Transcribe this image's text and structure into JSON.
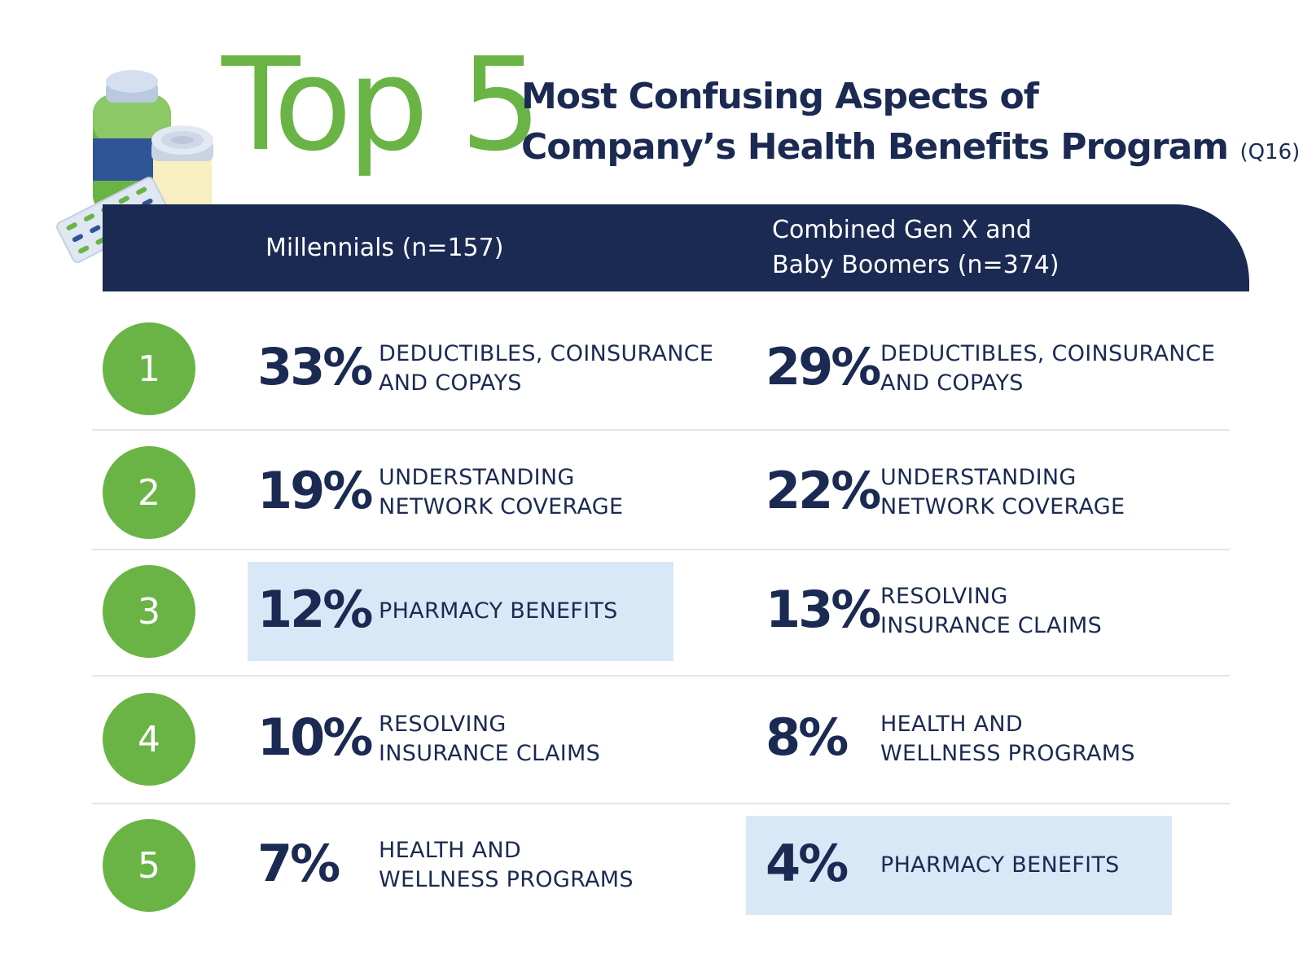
{
  "chart_data": {
    "type": "table",
    "title_big": "Top 5",
    "title_line1": "Most Confusing Aspects of",
    "title_line2": "Company’s Health Benefits Program",
    "title_question": "(Q16)",
    "columns": [
      {
        "label_lines": [
          "Millennials (n=157)"
        ]
      },
      {
        "label_lines": [
          "Combined Gen X and",
          "Baby Boomers (n=374)"
        ]
      }
    ],
    "ranks": [
      "1",
      "2",
      "3",
      "4",
      "5"
    ],
    "series": [
      {
        "values": [
          33,
          19,
          12,
          10,
          7
        ],
        "pct_labels": [
          "33%",
          "19%",
          "12%",
          "10%",
          "7%"
        ],
        "items": [
          [
            "DEDUCTIBLES, COINSURANCE",
            "AND COPAYS"
          ],
          [
            "UNDERSTANDING",
            "NETWORK COVERAGE"
          ],
          [
            "PHARMACY BENEFITS"
          ],
          [
            "RESOLVING",
            "INSURANCE CLAIMS"
          ],
          [
            "HEALTH AND",
            "WELLNESS PROGRAMS"
          ]
        ],
        "highlight_rank": 3
      },
      {
        "values": [
          29,
          22,
          13,
          8,
          4
        ],
        "pct_labels": [
          "29%",
          "22%",
          "13%",
          "8%",
          "4%"
        ],
        "items": [
          [
            "DEDUCTIBLES, COINSURANCE",
            "AND COPAYS"
          ],
          [
            "UNDERSTANDING",
            "NETWORK COVERAGE"
          ],
          [
            "RESOLVING",
            "INSURANCE CLAIMS"
          ],
          [
            "HEALTH AND",
            "WELLNESS PROGRAMS"
          ],
          [
            "PHARMACY BENEFITS"
          ]
        ],
        "highlight_rank": 5
      }
    ]
  },
  "colors": {
    "green": "#6ab446",
    "navy": "#1b2a52",
    "highlight": "#d9e8f7",
    "divider": "#e3e5ea"
  },
  "icons": [
    "pill-bottle-icon",
    "pill-jar-icon",
    "blister-pack-icon",
    "tablet-icon"
  ]
}
